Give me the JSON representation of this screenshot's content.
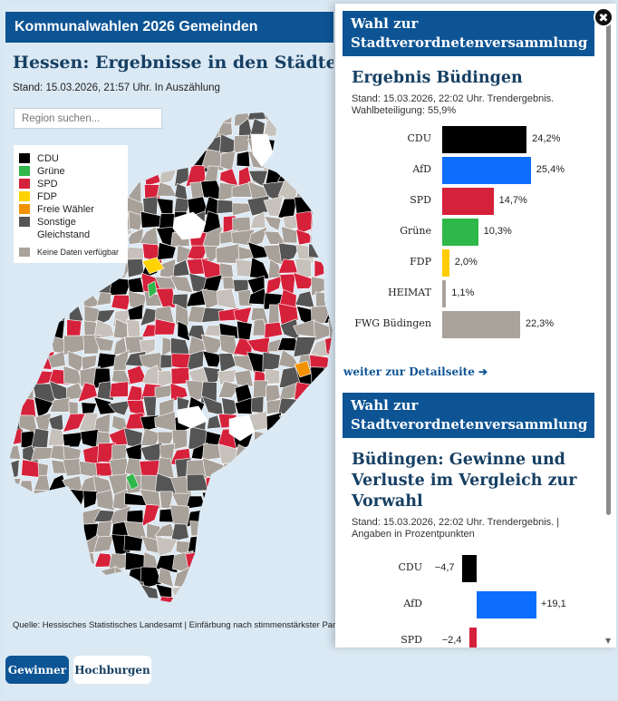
{
  "map": {
    "banner": "Kommunalwahlen 2026 Gemeinden",
    "title": "Hessen: Ergebnisse in den Städten und Gemeinden",
    "stand": "Stand: 15.03.2026, 21:57 Uhr. In Auszählung",
    "search_placeholder": "Region suchen...",
    "source": "Quelle: Hessisches Statistisches Landesamt  | Einfärbung nach stimmenstärkster Partei"
  },
  "legend": {
    "items": [
      {
        "label": "CDU",
        "color": "#000000"
      },
      {
        "label": "Grüne",
        "color": "#2eb84a"
      },
      {
        "label": "SPD",
        "color": "#d6213b"
      },
      {
        "label": "FDP",
        "color": "#ffd200"
      },
      {
        "label": "Freie Wähler",
        "color": "#f39200"
      },
      {
        "label": "Sonstige",
        "color": "#555555"
      },
      {
        "label": "Gleichstand",
        "color": ""
      }
    ],
    "no_data": {
      "label": "Keine Daten verfügbar",
      "color": "#aaa39c"
    }
  },
  "buttons": {
    "winner": "Gewinner",
    "strongholds": "Hochburgen"
  },
  "panel": {
    "result_title": "Wahl zur Stadtverordnetenversammlung",
    "result_heading": "Ergebnis Büdingen",
    "result_stand_1": "Stand: 15.03.2026, 22:02 Uhr. Trendergebnis.",
    "result_stand_2": "Wahlbeteiligung: 55,9%",
    "results": [
      {
        "party": "CDU",
        "value": "24,2%",
        "pct": 24.2,
        "color": "#000000"
      },
      {
        "party": "AfD",
        "value": "25,4%",
        "pct": 25.4,
        "color": "#0d6efd"
      },
      {
        "party": "SPD",
        "value": "14,7%",
        "pct": 14.7,
        "color": "#d6213b"
      },
      {
        "party": "Grüne",
        "value": "10,3%",
        "pct": 10.3,
        "color": "#2eb84a"
      },
      {
        "party": "FDP",
        "value": "2,0%",
        "pct": 2.0,
        "color": "#ffcc00"
      },
      {
        "party": "HEIMAT",
        "value": "1,1%",
        "pct": 1.1,
        "color": "#aaa39c"
      },
      {
        "party": "FWG Büdingen",
        "value": "22,3%",
        "pct": 22.3,
        "color": "#aaa39c"
      }
    ],
    "detail_link": "weiter zur Detailseite ➔",
    "change_title": "Wahl zur Stadtverordnetenversammlung",
    "change_heading": "Büdingen: Gewinne und Verluste im Vergleich zur Vorwahl",
    "change_stand_1": "Stand: 15.03.2026, 22:02 Uhr. Trendergebnis. |",
    "change_stand_2": "Angaben in Prozentpunkten",
    "changes": [
      {
        "party": "CDU",
        "value": "−4,7",
        "delta": -4.7,
        "color": "#000000"
      },
      {
        "party": "AfD",
        "value": "+19,1",
        "delta": 19.1,
        "color": "#0d6efd"
      },
      {
        "party": "SPD",
        "value": "−2,4",
        "delta": -2.4,
        "color": "#d6213b"
      }
    ]
  },
  "close_icon": "✖"
}
